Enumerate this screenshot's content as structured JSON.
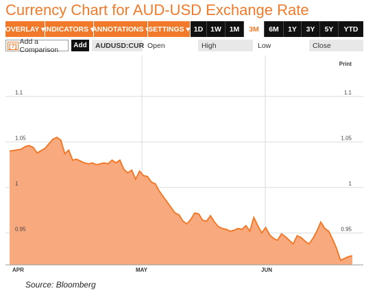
{
  "title": "Currency Chart for AUD-USD Exchange Rate",
  "toolbar": {
    "menus": [
      "OVERLAY ▾",
      "INDICATORS ▾",
      "ANNOTATIONS ▾",
      "SETTINGS ▾"
    ],
    "ranges": [
      "1D",
      "1W",
      "1M",
      "3M",
      "6M",
      "1Y",
      "3Y",
      "5Y",
      "YTD"
    ],
    "active_range": "3M"
  },
  "compare": {
    "icon": "[?]",
    "label": "Add a Comparison",
    "add_label": "Add"
  },
  "quote": {
    "ticker": "AUDUSD:CUR",
    "open_label": "Open",
    "high_label": "High",
    "low_label": "Low",
    "close_label": "Close"
  },
  "print_label": "Print",
  "source": "Source: Bloomberg",
  "colors": {
    "accent": "#f07a2a",
    "area_fill": "#f9a97e",
    "line": "#f07a2a"
  },
  "chart_data": {
    "type": "area",
    "x_labels": [
      "APR",
      "MAY",
      "JUN"
    ],
    "y_ticks": [
      "1.1",
      "1.05",
      "1",
      "0.95"
    ],
    "ylim": [
      0.915,
      1.145
    ],
    "x_range": [
      0,
      87
    ],
    "grid": true,
    "series": [
      {
        "x": [
          0,
          3,
          4,
          5,
          6,
          7,
          9,
          11,
          12,
          13,
          14,
          15,
          16,
          17,
          18,
          19,
          20,
          21,
          22,
          23,
          24,
          25,
          26,
          27,
          28,
          29,
          30,
          31,
          32,
          33,
          34,
          35,
          36,
          37,
          38,
          39,
          40,
          41,
          42,
          43,
          44,
          45,
          46,
          47,
          48,
          49,
          50,
          51,
          52,
          53,
          54,
          55,
          56,
          57,
          58,
          59,
          60,
          61,
          62,
          63,
          64,
          65,
          66,
          67,
          68,
          69,
          70,
          71,
          72,
          73,
          74,
          75,
          76,
          77,
          78,
          79,
          80,
          81,
          82,
          83,
          84,
          85,
          86,
          87
        ],
        "values": [
          1.04,
          1.042,
          1.045,
          1.046,
          1.044,
          1.038,
          1.043,
          1.053,
          1.055,
          1.052,
          1.037,
          1.041,
          1.03,
          1.031,
          1.029,
          1.027,
          1.026,
          1.027,
          1.025,
          1.026,
          1.027,
          1.026,
          1.03,
          1.027,
          1.03,
          1.02,
          1.016,
          1.019,
          1.009,
          1.018,
          1.013,
          1.012,
          1.006,
          1.004,
          0.996,
          0.99,
          0.984,
          0.978,
          0.972,
          0.97,
          0.963,
          0.96,
          0.965,
          0.972,
          0.971,
          0.964,
          0.963,
          0.969,
          0.962,
          0.957,
          0.955,
          0.954,
          0.952,
          0.953,
          0.955,
          0.954,
          0.958,
          0.952,
          0.967,
          0.958,
          0.95,
          0.956,
          0.948,
          0.944,
          0.942,
          0.949,
          0.946,
          0.942,
          0.938,
          0.947,
          0.945,
          0.941,
          0.938,
          0.944,
          0.952,
          0.962,
          0.955,
          0.952,
          0.943,
          0.933,
          0.92,
          0.922,
          0.924,
          0.925
        ]
      }
    ]
  }
}
